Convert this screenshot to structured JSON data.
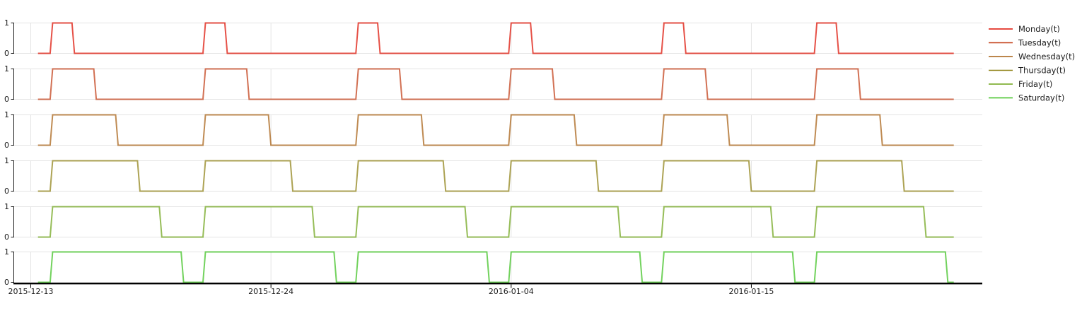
{
  "chart_data": {
    "type": "line",
    "title": "",
    "subplot_count": 6,
    "x_tick_labels": [
      "2015-12-13",
      "2015-12-24",
      "2016-01-04",
      "2016-01-15"
    ],
    "x_tick_day_offsets": [
      0,
      11,
      22,
      33
    ],
    "y_tick_labels": [
      "0",
      "1"
    ],
    "ylim": [
      0,
      1
    ],
    "grid": true,
    "legend_position": "right",
    "series": [
      {
        "name": "Monday(t)",
        "color": "#dd0e00",
        "values": [
          0,
          1,
          0,
          0,
          0,
          0,
          0,
          0,
          1,
          0,
          0,
          0,
          0,
          0,
          0,
          1,
          0,
          0,
          0,
          0,
          0,
          0,
          1,
          0,
          0,
          0,
          0,
          0,
          0,
          1,
          0,
          0,
          0,
          0,
          0,
          0,
          1,
          0,
          0,
          0,
          0,
          0,
          0
        ]
      },
      {
        "name": "Tuesday(t)",
        "color": "#c13a12",
        "values": [
          0,
          1,
          1,
          0,
          0,
          0,
          0,
          0,
          1,
          1,
          0,
          0,
          0,
          0,
          0,
          1,
          1,
          0,
          0,
          0,
          0,
          0,
          1,
          1,
          0,
          0,
          0,
          0,
          0,
          1,
          1,
          0,
          0,
          0,
          0,
          0,
          1,
          1,
          0,
          0,
          0,
          0,
          0
        ]
      },
      {
        "name": "Wednesday(t)",
        "color": "#a65e10",
        "values": [
          0,
          1,
          1,
          1,
          0,
          0,
          0,
          0,
          1,
          1,
          1,
          0,
          0,
          0,
          0,
          1,
          1,
          1,
          0,
          0,
          0,
          0,
          1,
          1,
          1,
          0,
          0,
          0,
          0,
          1,
          1,
          1,
          0,
          0,
          0,
          0,
          1,
          1,
          1,
          0,
          0,
          0,
          0
        ]
      },
      {
        "name": "Thursday(t)",
        "color": "#8e8012",
        "values": [
          0,
          1,
          1,
          1,
          1,
          0,
          0,
          0,
          1,
          1,
          1,
          1,
          0,
          0,
          0,
          1,
          1,
          1,
          1,
          0,
          0,
          0,
          1,
          1,
          1,
          1,
          0,
          0,
          0,
          1,
          1,
          1,
          1,
          0,
          0,
          0,
          1,
          1,
          1,
          1,
          0,
          0,
          0
        ]
      },
      {
        "name": "Friday(t)",
        "color": "#6da317",
        "values": [
          0,
          1,
          1,
          1,
          1,
          1,
          0,
          0,
          1,
          1,
          1,
          1,
          1,
          0,
          0,
          1,
          1,
          1,
          1,
          1,
          0,
          0,
          1,
          1,
          1,
          1,
          1,
          0,
          0,
          1,
          1,
          1,
          1,
          1,
          0,
          0,
          1,
          1,
          1,
          1,
          1,
          0,
          0
        ]
      },
      {
        "name": "Saturday(t)",
        "color": "#3cc01e",
        "values": [
          0,
          1,
          1,
          1,
          1,
          1,
          1,
          0,
          1,
          1,
          1,
          1,
          1,
          1,
          0,
          1,
          1,
          1,
          1,
          1,
          1,
          0,
          1,
          1,
          1,
          1,
          1,
          1,
          0,
          1,
          1,
          1,
          1,
          1,
          1,
          0,
          1,
          1,
          1,
          1,
          1,
          1,
          0
        ]
      }
    ]
  }
}
